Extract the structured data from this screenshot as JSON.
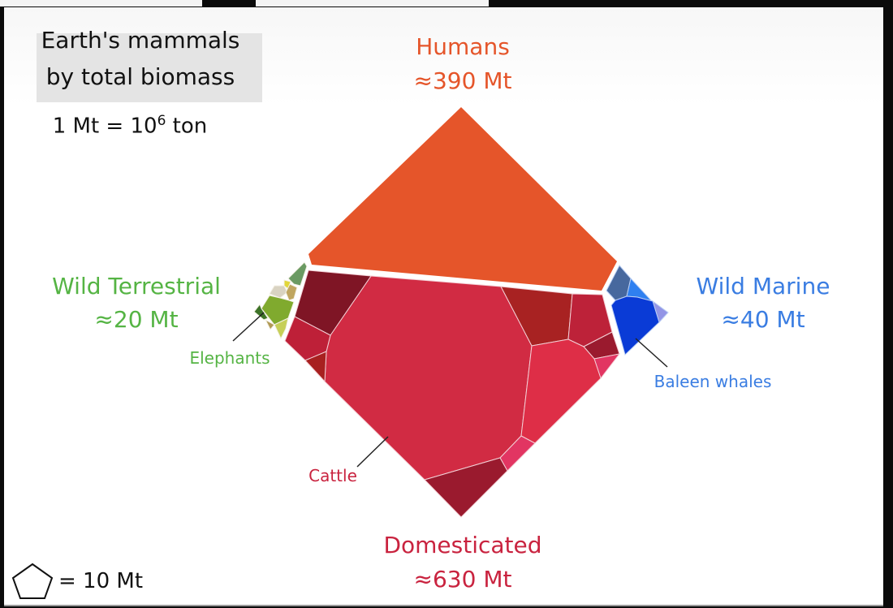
{
  "title": {
    "line1": "Earth's mammals",
    "line2": "by total biomass"
  },
  "unit_note": {
    "prefix": "1 Mt = 10",
    "exp": "6",
    "suffix": " ton"
  },
  "groups": {
    "humans": {
      "label": "Humans",
      "value": "≈390 Mt",
      "color": "#e5552a"
    },
    "wild_terrestrial": {
      "label": "Wild Terrestrial",
      "value": "≈20 Mt",
      "color": "#55b444"
    },
    "wild_marine": {
      "label": "Wild Marine",
      "value": "≈40 Mt",
      "color": "#3a7de2"
    },
    "domesticated": {
      "label": "Domesticated",
      "value": "≈630 Mt",
      "color": "#c9233f"
    }
  },
  "callouts": {
    "elephants": "Elephants",
    "baleen_whales": "Baleen whales",
    "cattle": "Cattle"
  },
  "legend": {
    "icon": "pentagon-icon",
    "text": "= 10 Mt"
  }
}
